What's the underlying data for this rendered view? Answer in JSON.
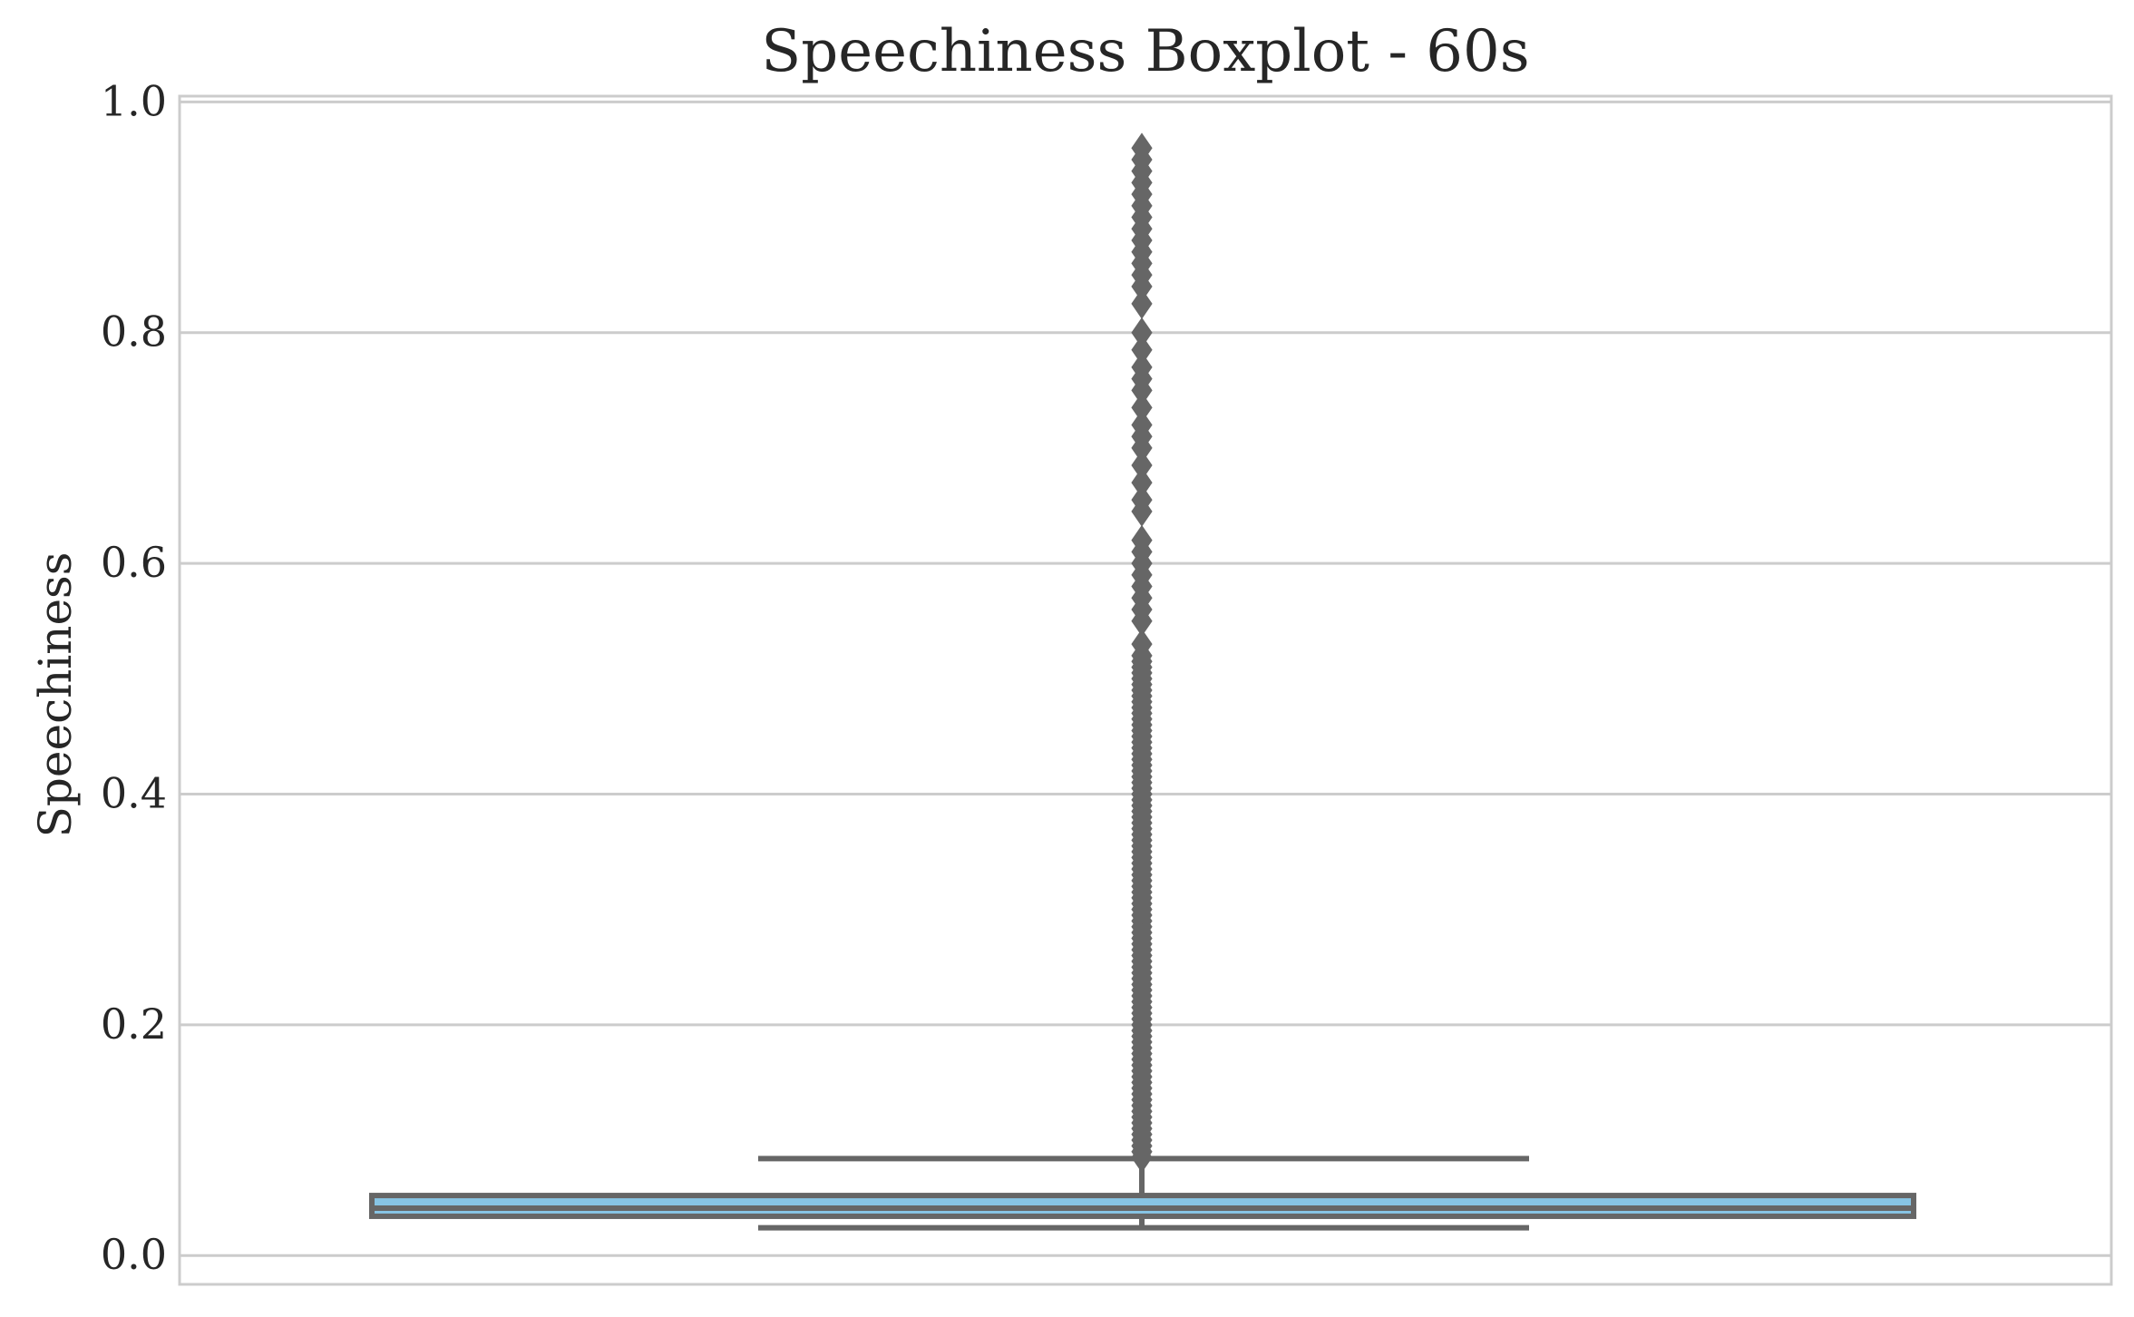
{
  "chart_data": {
    "type": "boxplot",
    "title": "Speechiness Boxplot - 60s",
    "xlabel": "",
    "ylabel": "Speechiness",
    "ylim": [
      -0.025,
      1.005
    ],
    "yticks": [
      0.0,
      0.2,
      0.4,
      0.6,
      0.8,
      1.0
    ],
    "ytick_labels": [
      "0.0",
      "0.2",
      "0.4",
      "0.6",
      "0.8",
      "1.0"
    ],
    "grid": "horizontal",
    "box": {
      "whisker_low": 0.024,
      "q1": 0.034,
      "median": 0.041,
      "q3": 0.052,
      "whisker_high": 0.084,
      "outliers": [
        0.085,
        0.09,
        0.095,
        0.1,
        0.105,
        0.11,
        0.115,
        0.12,
        0.125,
        0.13,
        0.135,
        0.14,
        0.145,
        0.15,
        0.155,
        0.16,
        0.165,
        0.17,
        0.175,
        0.18,
        0.185,
        0.19,
        0.195,
        0.2,
        0.205,
        0.21,
        0.215,
        0.22,
        0.225,
        0.23,
        0.235,
        0.24,
        0.245,
        0.25,
        0.255,
        0.26,
        0.265,
        0.27,
        0.275,
        0.28,
        0.285,
        0.29,
        0.295,
        0.3,
        0.305,
        0.31,
        0.315,
        0.32,
        0.325,
        0.33,
        0.335,
        0.34,
        0.345,
        0.35,
        0.355,
        0.36,
        0.365,
        0.37,
        0.375,
        0.38,
        0.385,
        0.39,
        0.395,
        0.4,
        0.405,
        0.41,
        0.415,
        0.42,
        0.425,
        0.43,
        0.435,
        0.44,
        0.445,
        0.45,
        0.455,
        0.46,
        0.465,
        0.47,
        0.475,
        0.48,
        0.485,
        0.49,
        0.495,
        0.5,
        0.505,
        0.51,
        0.515,
        0.52,
        0.53,
        0.55,
        0.56,
        0.57,
        0.58,
        0.59,
        0.6,
        0.61,
        0.62,
        0.645,
        0.655,
        0.67,
        0.685,
        0.7,
        0.71,
        0.72,
        0.735,
        0.75,
        0.76,
        0.77,
        0.785,
        0.8,
        0.825,
        0.84,
        0.85,
        0.86,
        0.87,
        0.88,
        0.89,
        0.9,
        0.91,
        0.92,
        0.93,
        0.94,
        0.95,
        0.96
      ]
    },
    "colors": {
      "box_fill": "#87c4e4",
      "line": "#666666",
      "grid": "#cccccc",
      "spine": "#cccccc"
    }
  }
}
